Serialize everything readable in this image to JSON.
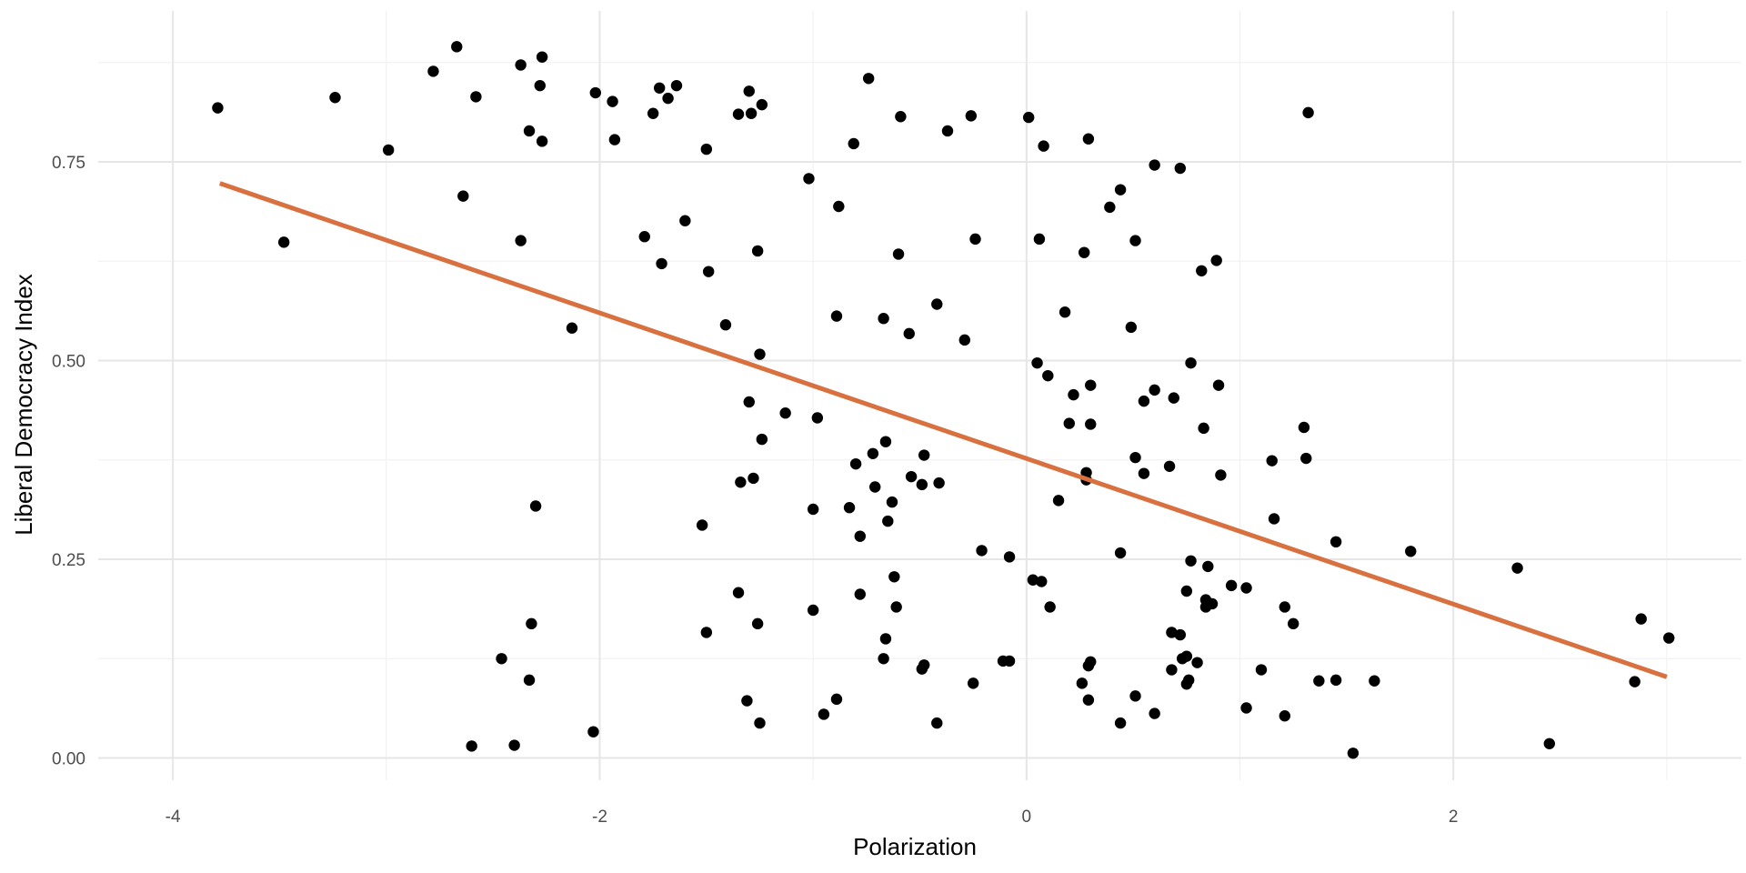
{
  "chart_data": {
    "type": "scatter",
    "title": "",
    "xlabel": "Polarization",
    "ylabel": "Liberal Democracy Index",
    "xlim": [
      -4.35,
      3.35
    ],
    "ylim": [
      -0.028,
      0.94
    ],
    "x_ticks": [
      -4,
      -2,
      0,
      2
    ],
    "x_tick_labels": [
      "-4",
      "-2",
      "0",
      "2"
    ],
    "y_ticks": [
      0.0,
      0.25,
      0.5,
      0.75
    ],
    "y_tick_labels": [
      "0.00",
      "0.25",
      "0.50",
      "0.75"
    ],
    "grid": true,
    "point_color": "#000000",
    "trend_color": "#D9703F",
    "trend_line": {
      "x": [
        -3.78,
        3.0
      ],
      "y": [
        0.723,
        0.102
      ]
    },
    "points": [
      {
        "x": -3.79,
        "y": 0.818
      },
      {
        "x": -3.24,
        "y": 0.831
      },
      {
        "x": -2.99,
        "y": 0.765
      },
      {
        "x": -3.48,
        "y": 0.649
      },
      {
        "x": -2.78,
        "y": 0.864
      },
      {
        "x": -2.67,
        "y": 0.895
      },
      {
        "x": -2.58,
        "y": 0.832
      },
      {
        "x": -2.64,
        "y": 0.707
      },
      {
        "x": -2.37,
        "y": 0.872
      },
      {
        "x": -2.27,
        "y": 0.882
      },
      {
        "x": -2.28,
        "y": 0.846
      },
      {
        "x": -2.33,
        "y": 0.789
      },
      {
        "x": -2.27,
        "y": 0.776
      },
      {
        "x": -2.37,
        "y": 0.651
      },
      {
        "x": -2.13,
        "y": 0.541
      },
      {
        "x": -2.3,
        "y": 0.317
      },
      {
        "x": -2.32,
        "y": 0.169
      },
      {
        "x": -2.46,
        "y": 0.125
      },
      {
        "x": -2.33,
        "y": 0.098
      },
      {
        "x": -2.6,
        "y": 0.015
      },
      {
        "x": -2.4,
        "y": 0.016
      },
      {
        "x": -2.03,
        "y": 0.033
      },
      {
        "x": -2.02,
        "y": 0.837
      },
      {
        "x": -1.94,
        "y": 0.826
      },
      {
        "x": -1.93,
        "y": 0.778
      },
      {
        "x": -1.79,
        "y": 0.656
      },
      {
        "x": -1.75,
        "y": 0.811
      },
      {
        "x": -1.72,
        "y": 0.843
      },
      {
        "x": -1.68,
        "y": 0.83
      },
      {
        "x": -1.64,
        "y": 0.846
      },
      {
        "x": -1.71,
        "y": 0.622
      },
      {
        "x": -1.6,
        "y": 0.676
      },
      {
        "x": -1.5,
        "y": 0.766
      },
      {
        "x": -1.49,
        "y": 0.612
      },
      {
        "x": -1.41,
        "y": 0.545
      },
      {
        "x": -1.52,
        "y": 0.293
      },
      {
        "x": -1.5,
        "y": 0.158
      },
      {
        "x": -1.35,
        "y": 0.81
      },
      {
        "x": -1.3,
        "y": 0.839
      },
      {
        "x": -1.29,
        "y": 0.811
      },
      {
        "x": -1.24,
        "y": 0.822
      },
      {
        "x": -1.26,
        "y": 0.638
      },
      {
        "x": -1.25,
        "y": 0.508
      },
      {
        "x": -1.3,
        "y": 0.448
      },
      {
        "x": -1.24,
        "y": 0.401
      },
      {
        "x": -1.34,
        "y": 0.347
      },
      {
        "x": -1.28,
        "y": 0.352
      },
      {
        "x": -1.35,
        "y": 0.208
      },
      {
        "x": -1.26,
        "y": 0.169
      },
      {
        "x": -1.31,
        "y": 0.072
      },
      {
        "x": -1.25,
        "y": 0.044
      },
      {
        "x": -1.13,
        "y": 0.434
      },
      {
        "x": -1.02,
        "y": 0.729
      },
      {
        "x": -0.98,
        "y": 0.428
      },
      {
        "x": -1.0,
        "y": 0.313
      },
      {
        "x": -1.0,
        "y": 0.186
      },
      {
        "x": -0.95,
        "y": 0.055
      },
      {
        "x": -0.89,
        "y": 0.074
      },
      {
        "x": -0.88,
        "y": 0.694
      },
      {
        "x": -0.89,
        "y": 0.556
      },
      {
        "x": -0.83,
        "y": 0.315
      },
      {
        "x": -0.81,
        "y": 0.773
      },
      {
        "x": -0.8,
        "y": 0.37
      },
      {
        "x": -0.78,
        "y": 0.279
      },
      {
        "x": -0.78,
        "y": 0.206
      },
      {
        "x": -0.74,
        "y": 0.855
      },
      {
        "x": -0.72,
        "y": 0.383
      },
      {
        "x": -0.71,
        "y": 0.341
      },
      {
        "x": -0.67,
        "y": 0.553
      },
      {
        "x": -0.66,
        "y": 0.398
      },
      {
        "x": -0.65,
        "y": 0.298
      },
      {
        "x": -0.63,
        "y": 0.322
      },
      {
        "x": -0.62,
        "y": 0.228
      },
      {
        "x": -0.61,
        "y": 0.19
      },
      {
        "x": -0.66,
        "y": 0.15
      },
      {
        "x": -0.67,
        "y": 0.125
      },
      {
        "x": -0.6,
        "y": 0.634
      },
      {
        "x": -0.59,
        "y": 0.807
      },
      {
        "x": -0.55,
        "y": 0.534
      },
      {
        "x": -0.54,
        "y": 0.354
      },
      {
        "x": -0.48,
        "y": 0.381
      },
      {
        "x": -0.49,
        "y": 0.344
      },
      {
        "x": -0.49,
        "y": 0.112
      },
      {
        "x": -0.48,
        "y": 0.117
      },
      {
        "x": -0.42,
        "y": 0.571
      },
      {
        "x": -0.41,
        "y": 0.346
      },
      {
        "x": -0.42,
        "y": 0.044
      },
      {
        "x": -0.37,
        "y": 0.789
      },
      {
        "x": -0.29,
        "y": 0.526
      },
      {
        "x": -0.26,
        "y": 0.808
      },
      {
        "x": -0.24,
        "y": 0.653
      },
      {
        "x": -0.25,
        "y": 0.094
      },
      {
        "x": -0.21,
        "y": 0.261
      },
      {
        "x": -0.11,
        "y": 0.122
      },
      {
        "x": -0.08,
        "y": 0.253
      },
      {
        "x": -0.08,
        "y": 0.122
      },
      {
        "x": 0.01,
        "y": 0.806
      },
      {
        "x": 0.03,
        "y": 0.224
      },
      {
        "x": 0.05,
        "y": 0.497
      },
      {
        "x": 0.06,
        "y": 0.653
      },
      {
        "x": 0.07,
        "y": 0.222
      },
      {
        "x": 0.08,
        "y": 0.77
      },
      {
        "x": 0.1,
        "y": 0.481
      },
      {
        "x": 0.11,
        "y": 0.19
      },
      {
        "x": 0.15,
        "y": 0.324
      },
      {
        "x": 0.18,
        "y": 0.561
      },
      {
        "x": 0.2,
        "y": 0.421
      },
      {
        "x": 0.22,
        "y": 0.457
      },
      {
        "x": 0.26,
        "y": 0.094
      },
      {
        "x": 0.28,
        "y": 0.359
      },
      {
        "x": 0.27,
        "y": 0.636
      },
      {
        "x": 0.28,
        "y": 0.35
      },
      {
        "x": 0.29,
        "y": 0.779
      },
      {
        "x": 0.3,
        "y": 0.42
      },
      {
        "x": 0.3,
        "y": 0.469
      },
      {
        "x": 0.29,
        "y": 0.073
      },
      {
        "x": 0.29,
        "y": 0.116
      },
      {
        "x": 0.3,
        "y": 0.121
      },
      {
        "x": 0.39,
        "y": 0.693
      },
      {
        "x": 0.44,
        "y": 0.715
      },
      {
        "x": 0.44,
        "y": 0.258
      },
      {
        "x": 0.44,
        "y": 0.044
      },
      {
        "x": 0.49,
        "y": 0.542
      },
      {
        "x": 0.51,
        "y": 0.651
      },
      {
        "x": 0.51,
        "y": 0.378
      },
      {
        "x": 0.51,
        "y": 0.078
      },
      {
        "x": 0.55,
        "y": 0.449
      },
      {
        "x": 0.55,
        "y": 0.358
      },
      {
        "x": 0.6,
        "y": 0.746
      },
      {
        "x": 0.6,
        "y": 0.463
      },
      {
        "x": 0.6,
        "y": 0.056
      },
      {
        "x": 0.67,
        "y": 0.367
      },
      {
        "x": 0.69,
        "y": 0.453
      },
      {
        "x": 0.68,
        "y": 0.158
      },
      {
        "x": 0.68,
        "y": 0.111
      },
      {
        "x": 0.72,
        "y": 0.742
      },
      {
        "x": 0.72,
        "y": 0.155
      },
      {
        "x": 0.73,
        "y": 0.125
      },
      {
        "x": 0.75,
        "y": 0.21
      },
      {
        "x": 0.75,
        "y": 0.128
      },
      {
        "x": 0.75,
        "y": 0.093
      },
      {
        "x": 0.76,
        "y": 0.098
      },
      {
        "x": 0.77,
        "y": 0.497
      },
      {
        "x": 0.77,
        "y": 0.248
      },
      {
        "x": 0.8,
        "y": 0.12
      },
      {
        "x": 0.82,
        "y": 0.613
      },
      {
        "x": 0.83,
        "y": 0.415
      },
      {
        "x": 0.84,
        "y": 0.199
      },
      {
        "x": 0.84,
        "y": 0.19
      },
      {
        "x": 0.85,
        "y": 0.241
      },
      {
        "x": 0.87,
        "y": 0.194
      },
      {
        "x": 0.89,
        "y": 0.626
      },
      {
        "x": 0.9,
        "y": 0.469
      },
      {
        "x": 0.91,
        "y": 0.356
      },
      {
        "x": 0.96,
        "y": 0.217
      },
      {
        "x": 1.03,
        "y": 0.214
      },
      {
        "x": 1.03,
        "y": 0.063
      },
      {
        "x": 1.1,
        "y": 0.111
      },
      {
        "x": 1.15,
        "y": 0.374
      },
      {
        "x": 1.16,
        "y": 0.301
      },
      {
        "x": 1.21,
        "y": 0.19
      },
      {
        "x": 1.21,
        "y": 0.053
      },
      {
        "x": 1.25,
        "y": 0.169
      },
      {
        "x": 1.3,
        "y": 0.416
      },
      {
        "x": 1.31,
        "y": 0.377
      },
      {
        "x": 1.32,
        "y": 0.812
      },
      {
        "x": 1.37,
        "y": 0.097
      },
      {
        "x": 1.45,
        "y": 0.272
      },
      {
        "x": 1.45,
        "y": 0.098
      },
      {
        "x": 1.53,
        "y": 0.006
      },
      {
        "x": 1.63,
        "y": 0.097
      },
      {
        "x": 1.8,
        "y": 0.26
      },
      {
        "x": 2.3,
        "y": 0.239
      },
      {
        "x": 2.45,
        "y": 0.018
      },
      {
        "x": 2.85,
        "y": 0.096
      },
      {
        "x": 2.88,
        "y": 0.175
      },
      {
        "x": 3.01,
        "y": 0.151
      }
    ]
  }
}
